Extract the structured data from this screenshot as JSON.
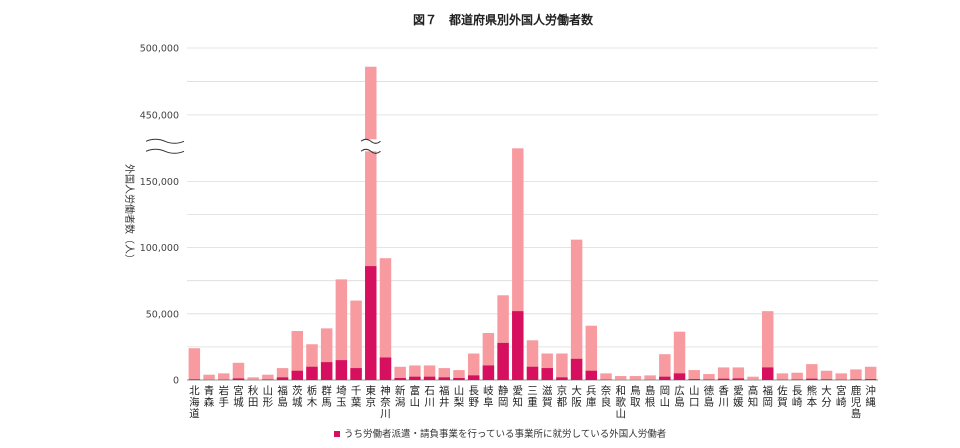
{
  "chart_data": {
    "type": "bar",
    "title": "図７　都道府県別外国人労働者数",
    "ylabel": "外国人労働者数（人）",
    "yticks": [
      "0",
      "50,000",
      "100,000",
      "150,000",
      "450,000",
      "500,000"
    ],
    "ylim": [
      0,
      500000
    ],
    "axis_break": [
      175000,
      425000
    ],
    "grid": true,
    "legend_position": "bottom",
    "categories": [
      "北海道",
      "青森",
      "岩手",
      "宮城",
      "秋田",
      "山形",
      "福島",
      "茨城",
      "栃木",
      "群馬",
      "埼玉",
      "千葉",
      "東京",
      "神奈川",
      "新潟",
      "富山",
      "石川",
      "福井",
      "山梨",
      "長野",
      "岐阜",
      "静岡",
      "愛知",
      "三重",
      "滋賀",
      "京都",
      "大阪",
      "兵庫",
      "奈良",
      "和歌山",
      "鳥取",
      "島根",
      "岡山",
      "広島",
      "山口",
      "徳島",
      "香川",
      "愛媛",
      "高知",
      "福岡",
      "佐賀",
      "長崎",
      "熊本",
      "大分",
      "宮崎",
      "鹿児島",
      "沖縄"
    ],
    "series": [
      {
        "values": [
          24000,
          4000,
          5000,
          13000,
          2000,
          4000,
          9000,
          37000,
          27000,
          39000,
          76000,
          60000,
          486000,
          92000,
          10000,
          11000,
          11000,
          9000,
          7500,
          20000,
          35500,
          64000,
          175000,
          30000,
          20000,
          20000,
          106000,
          41000,
          5000,
          3000,
          3000,
          3500,
          19500,
          36500,
          7500,
          4500,
          9500,
          9500,
          2500,
          52000,
          5000,
          5500,
          12000,
          7000,
          5000,
          8000,
          10000
        ],
        "color": "#f79ba0"
      },
      {
        "name": "うち労働者派遣・請負事業を行っている事業所に就労している外国人労働者",
        "values": [
          500,
          200,
          300,
          1200,
          100,
          400,
          2000,
          7000,
          10000,
          13500,
          15000,
          9000,
          86000,
          17000,
          1500,
          2500,
          2500,
          2000,
          1500,
          3500,
          11000,
          28000,
          52000,
          10000,
          9000,
          2000,
          16000,
          7000,
          300,
          100,
          100,
          200,
          2500,
          5000,
          700,
          400,
          1000,
          1200,
          100,
          9500,
          300,
          400,
          1000,
          500,
          300,
          500,
          700
        ],
        "color": "#d6105f"
      }
    ]
  }
}
